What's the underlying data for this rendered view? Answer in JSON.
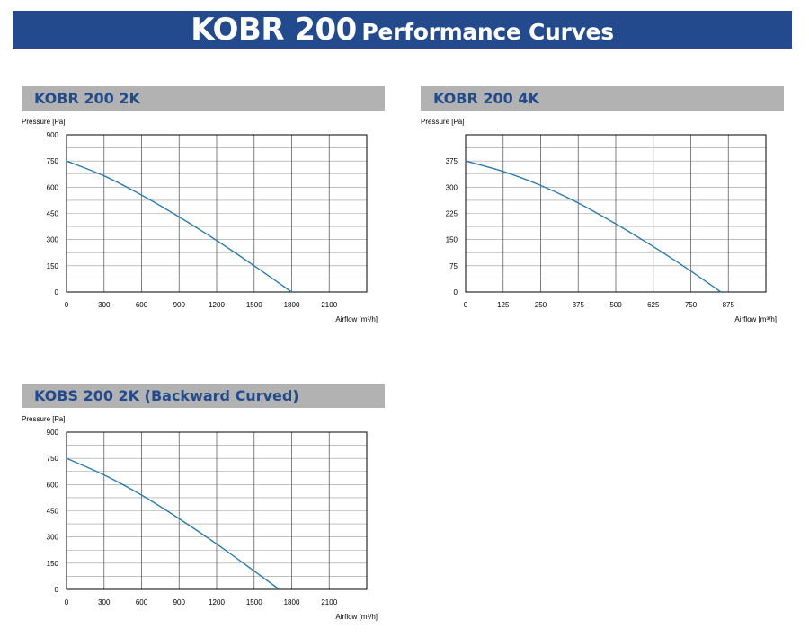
{
  "header": {
    "title_main": "KOBR 200",
    "title_sub": "Performance Curves"
  },
  "colors": {
    "banner": "#234a8c",
    "title_text": "#234a8c",
    "panel_header": "#b2b2b2",
    "curve": "#2e7ba7"
  },
  "chart_data": [
    {
      "type": "line",
      "title": "KOBR 200 2K",
      "ylabel": "Pressure [Pa]",
      "xlabel": "Airflow [m³/h]",
      "xlim": [
        0,
        2400
      ],
      "ylim": [
        0,
        900
      ],
      "xticks": [
        "0",
        "300",
        "600",
        "900",
        "1200",
        "1500",
        "1800",
        "2100"
      ],
      "yticks": [
        "0",
        "150",
        "300",
        "450",
        "600",
        "750",
        "900"
      ],
      "grid": true,
      "series": [
        {
          "x": [
            0,
            300,
            600,
            900,
            1200,
            1500,
            1800
          ],
          "y": [
            750,
            665,
            555,
            430,
            295,
            150,
            0
          ]
        }
      ]
    },
    {
      "type": "line",
      "title": "KOBR 200 4K",
      "ylabel": "Pressure [Pa]",
      "xlabel": "Airflow [m³/h]",
      "xlim": [
        0,
        1000
      ],
      "ylim": [
        0,
        450
      ],
      "xticks": [
        "0",
        "125",
        "250",
        "375",
        "500",
        "625",
        "750",
        "875"
      ],
      "yticks": [
        "0",
        "75",
        "150",
        "225",
        "300",
        "375"
      ],
      "grid": true,
      "series": [
        {
          "x": [
            0,
            125,
            250,
            375,
            500,
            625,
            750,
            850
          ],
          "y": [
            375,
            345,
            305,
            255,
            195,
            130,
            60,
            0
          ]
        }
      ]
    },
    {
      "type": "line",
      "title": "KOBS 200 2K (Backward Curved)",
      "ylabel": "Pressure [Pa]",
      "xlabel": "Airflow [m³/h]",
      "xlim": [
        0,
        2400
      ],
      "ylim": [
        0,
        900
      ],
      "xticks": [
        "0",
        "300",
        "600",
        "900",
        "1200",
        "1500",
        "1800",
        "2100"
      ],
      "yticks": [
        "0",
        "150",
        "300",
        "450",
        "600",
        "750",
        "900"
      ],
      "grid": true,
      "series": [
        {
          "x": [
            0,
            300,
            600,
            900,
            1200,
            1500,
            1700
          ],
          "y": [
            750,
            655,
            540,
            405,
            260,
            105,
            0
          ]
        }
      ]
    }
  ]
}
